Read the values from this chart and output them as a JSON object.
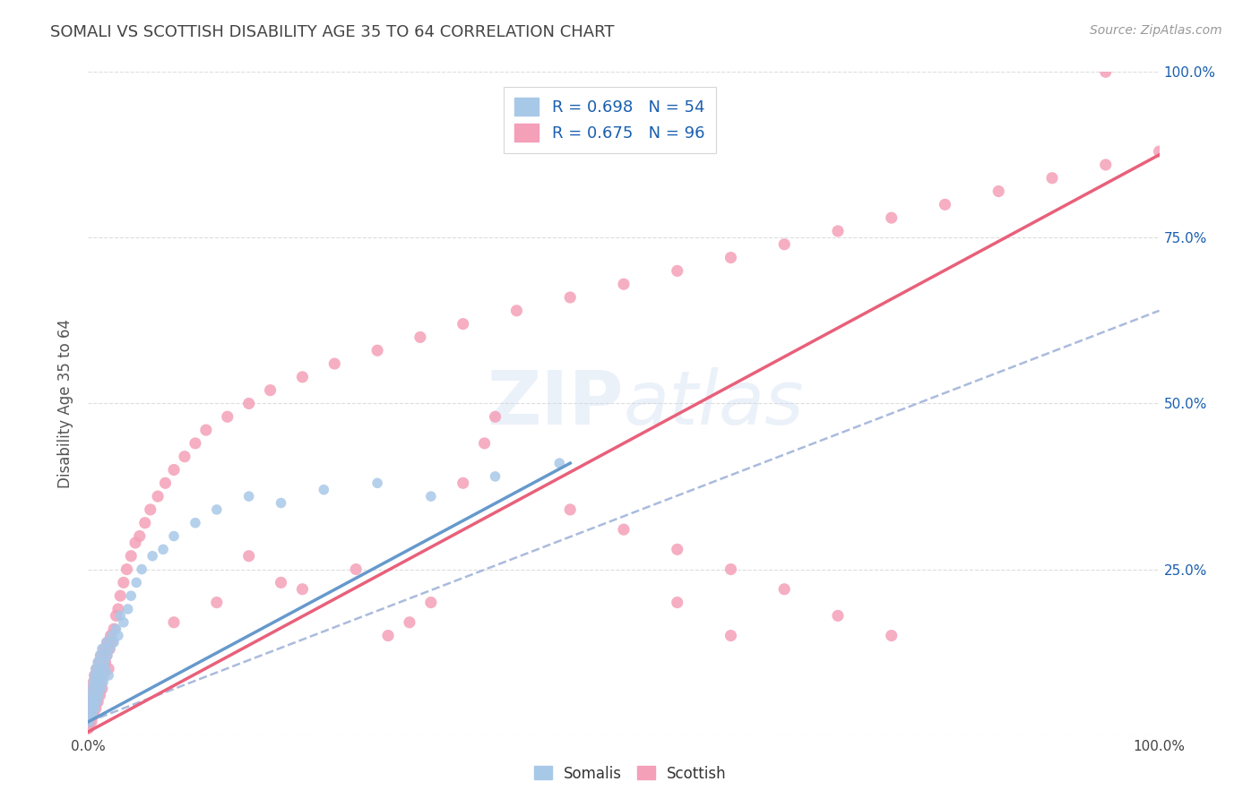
{
  "title": "SOMALI VS SCOTTISH DISABILITY AGE 35 TO 64 CORRELATION CHART",
  "source": "Source: ZipAtlas.com",
  "ylabel": "Disability Age 35 to 64",
  "xlim": [
    0.0,
    1.0
  ],
  "ylim": [
    0.0,
    1.0
  ],
  "somali_R": 0.698,
  "somali_N": 54,
  "scottish_R": 0.675,
  "scottish_N": 96,
  "somali_color": "#a8c8e8",
  "scottish_color": "#f4a0b8",
  "somali_line_color": "#6699cc",
  "scottish_line_color": "#e8607a",
  "dash_line_color": "#aabbdd",
  "background_color": "#ffffff",
  "grid_color": "#dddddd",
  "title_color": "#444444",
  "legend_text_color": "#1a5faf",
  "watermark_color": "#c8d8f0",
  "watermark_alpha": 0.35,
  "somali_x": [
    0.001,
    0.002,
    0.002,
    0.003,
    0.003,
    0.004,
    0.004,
    0.005,
    0.005,
    0.006,
    0.006,
    0.007,
    0.007,
    0.008,
    0.008,
    0.009,
    0.009,
    0.01,
    0.01,
    0.011,
    0.011,
    0.012,
    0.012,
    0.013,
    0.013,
    0.014,
    0.015,
    0.016,
    0.017,
    0.018,
    0.019,
    0.02,
    0.022,
    0.024,
    0.026,
    0.028,
    0.03,
    0.033,
    0.037,
    0.04,
    0.045,
    0.05,
    0.06,
    0.07,
    0.08,
    0.1,
    0.12,
    0.15,
    0.18,
    0.22,
    0.27,
    0.32,
    0.38,
    0.44
  ],
  "somali_y": [
    0.02,
    0.03,
    0.05,
    0.04,
    0.06,
    0.03,
    0.07,
    0.05,
    0.08,
    0.04,
    0.09,
    0.06,
    0.1,
    0.05,
    0.08,
    0.07,
    0.11,
    0.06,
    0.09,
    0.08,
    0.12,
    0.07,
    0.1,
    0.09,
    0.13,
    0.08,
    0.11,
    0.1,
    0.14,
    0.12,
    0.09,
    0.13,
    0.15,
    0.14,
    0.16,
    0.15,
    0.18,
    0.17,
    0.19,
    0.21,
    0.23,
    0.25,
    0.27,
    0.28,
    0.3,
    0.32,
    0.34,
    0.36,
    0.35,
    0.37,
    0.38,
    0.36,
    0.39,
    0.41
  ],
  "scottish_x": [
    0.0,
    0.001,
    0.001,
    0.002,
    0.002,
    0.003,
    0.003,
    0.004,
    0.004,
    0.005,
    0.005,
    0.006,
    0.006,
    0.007,
    0.007,
    0.008,
    0.008,
    0.009,
    0.009,
    0.01,
    0.01,
    0.011,
    0.011,
    0.012,
    0.012,
    0.013,
    0.013,
    0.014,
    0.015,
    0.016,
    0.017,
    0.018,
    0.019,
    0.02,
    0.021,
    0.022,
    0.024,
    0.026,
    0.028,
    0.03,
    0.033,
    0.036,
    0.04,
    0.044,
    0.048,
    0.053,
    0.058,
    0.065,
    0.072,
    0.08,
    0.09,
    0.1,
    0.11,
    0.13,
    0.15,
    0.17,
    0.2,
    0.23,
    0.27,
    0.31,
    0.35,
    0.4,
    0.45,
    0.5,
    0.55,
    0.6,
    0.65,
    0.7,
    0.75,
    0.8,
    0.85,
    0.9,
    0.95,
    1.0,
    0.37,
    0.38,
    0.35,
    0.15,
    0.2,
    0.25,
    0.3,
    0.32,
    0.28,
    0.45,
    0.5,
    0.55,
    0.6,
    0.65,
    0.7,
    0.75,
    0.08,
    0.12,
    0.18,
    0.55,
    0.6,
    0.95
  ],
  "scottish_y": [
    0.01,
    0.02,
    0.04,
    0.03,
    0.05,
    0.02,
    0.06,
    0.04,
    0.07,
    0.03,
    0.08,
    0.05,
    0.09,
    0.04,
    0.07,
    0.06,
    0.1,
    0.05,
    0.08,
    0.07,
    0.11,
    0.06,
    0.09,
    0.08,
    0.12,
    0.07,
    0.1,
    0.09,
    0.13,
    0.11,
    0.12,
    0.14,
    0.1,
    0.13,
    0.15,
    0.14,
    0.16,
    0.18,
    0.19,
    0.21,
    0.23,
    0.25,
    0.27,
    0.29,
    0.3,
    0.32,
    0.34,
    0.36,
    0.38,
    0.4,
    0.42,
    0.44,
    0.46,
    0.48,
    0.5,
    0.52,
    0.54,
    0.56,
    0.58,
    0.6,
    0.62,
    0.64,
    0.66,
    0.68,
    0.7,
    0.72,
    0.74,
    0.76,
    0.78,
    0.8,
    0.82,
    0.84,
    0.86,
    0.88,
    0.44,
    0.48,
    0.38,
    0.27,
    0.22,
    0.25,
    0.17,
    0.2,
    0.15,
    0.34,
    0.31,
    0.28,
    0.25,
    0.22,
    0.18,
    0.15,
    0.17,
    0.2,
    0.23,
    0.2,
    0.15,
    1.0
  ],
  "somali_line": {
    "x0": 0.0,
    "y0": 0.02,
    "x1": 0.45,
    "y1": 0.41
  },
  "scottish_line": {
    "x0": 0.0,
    "y0": 0.005,
    "x1": 1.0,
    "y1": 0.875
  },
  "dash_line": {
    "x0": 0.0,
    "y0": 0.02,
    "x1": 1.0,
    "y1": 0.64
  }
}
